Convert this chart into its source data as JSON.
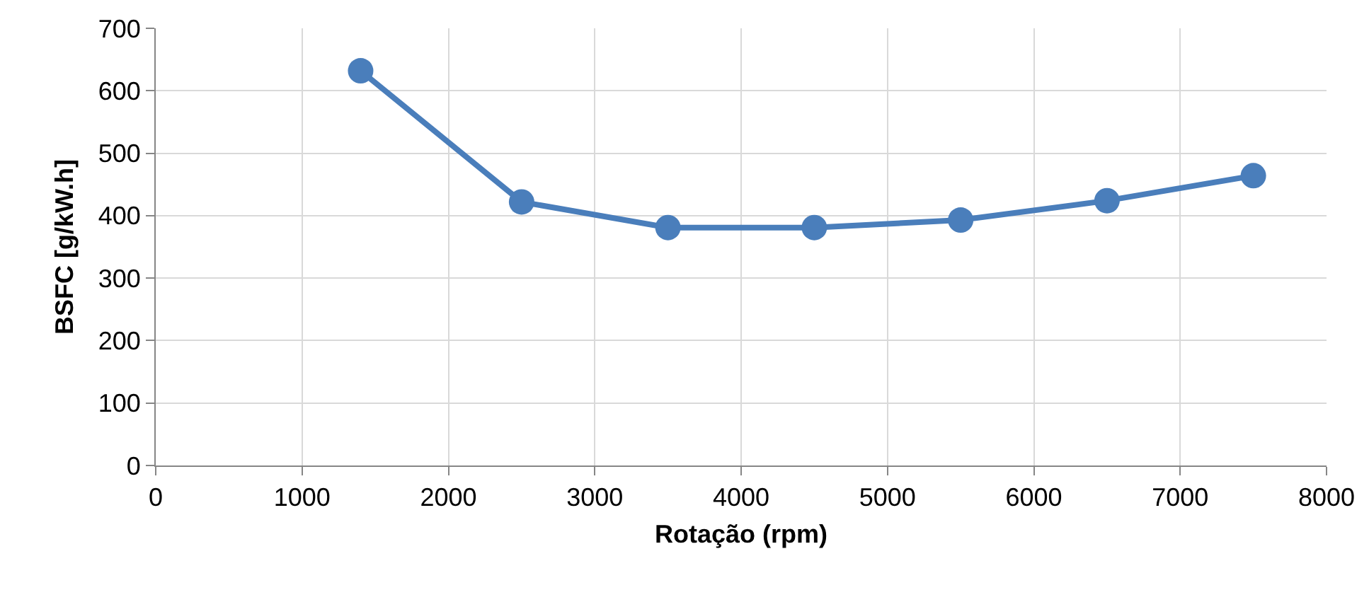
{
  "chart_data": {
    "type": "line",
    "xlabel": "Rotação (rpm)",
    "ylabel": "BSFC [g/kW.h]",
    "x": [
      1400,
      2500,
      3500,
      4500,
      5500,
      6500,
      7500
    ],
    "series": [
      {
        "color": "#4a7ebb",
        "values": [
          632,
          422,
          381,
          381,
          393,
          424,
          464
        ]
      }
    ],
    "xlim": [
      0,
      8000
    ],
    "xticks": [
      0,
      1000,
      2000,
      3000,
      4000,
      5000,
      6000,
      7000,
      8000
    ],
    "ylim": [
      0,
      700
    ],
    "yticks": [
      0,
      100,
      200,
      300,
      400,
      500,
      600,
      700
    ],
    "grid": true,
    "marker": "circle",
    "line_style": "solid"
  }
}
